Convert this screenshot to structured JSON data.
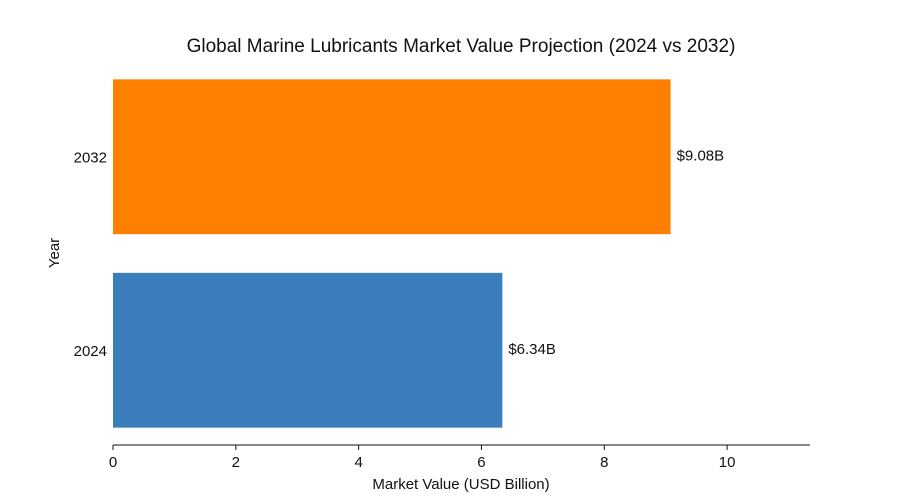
{
  "chart_data": {
    "type": "bar",
    "orientation": "horizontal",
    "title": "Global Marine Lubricants Market Value Projection (2024 vs 2032)",
    "xlabel": "Market Value (USD Billion)",
    "ylabel": "Year",
    "categories": [
      "2032",
      "2024"
    ],
    "values": [
      9.08,
      6.34
    ],
    "data_labels": [
      "$9.08B",
      "$6.34B"
    ],
    "colors": [
      "#ff8000",
      "#3a7ebb"
    ],
    "xlim": [
      0,
      11.35
    ],
    "xticks": [
      0,
      2,
      4,
      6,
      8,
      10
    ],
    "xtick_labels": [
      "0",
      "2",
      "4",
      "6",
      "8",
      "10"
    ],
    "grid": false,
    "legend": "none"
  }
}
